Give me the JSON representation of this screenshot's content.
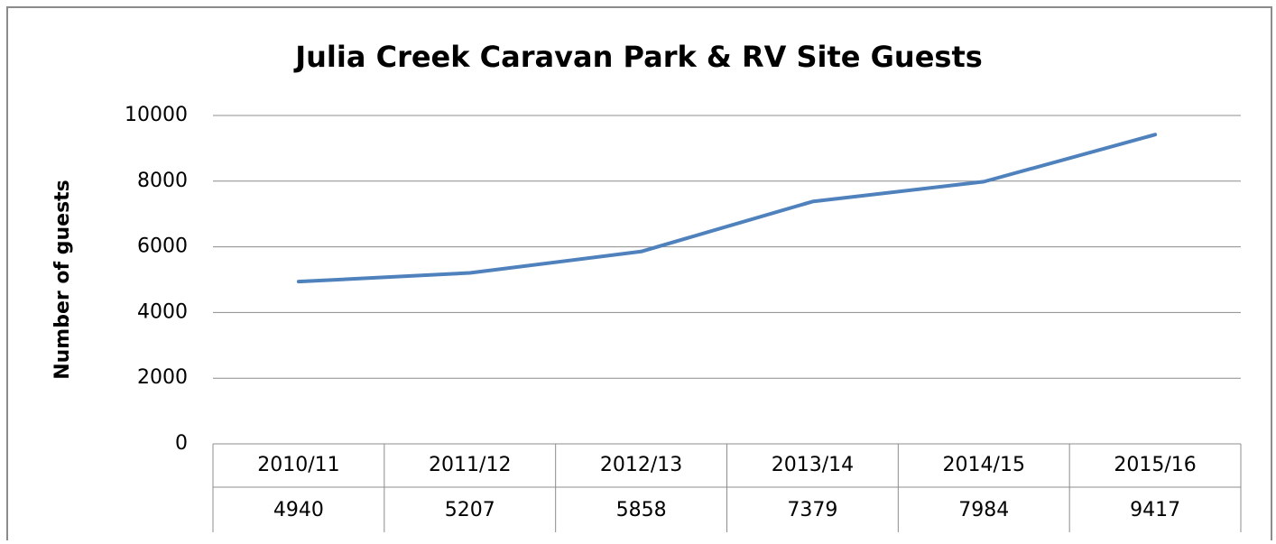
{
  "chart_data": {
    "type": "line",
    "title": "Julia Creek Caravan Park & RV Site Guests",
    "ylabel": "Number of guests",
    "categories": [
      "2010/11",
      "2011/12",
      "2012/13",
      "2013/14",
      "2014/15",
      "2015/16"
    ],
    "values": [
      4940,
      5207,
      5858,
      7379,
      7984,
      9417
    ],
    "color": "#4f81bd",
    "ylim": [
      0,
      10000
    ],
    "yticks": [
      0,
      2000,
      4000,
      6000,
      8000,
      10000
    ],
    "grid": true
  }
}
